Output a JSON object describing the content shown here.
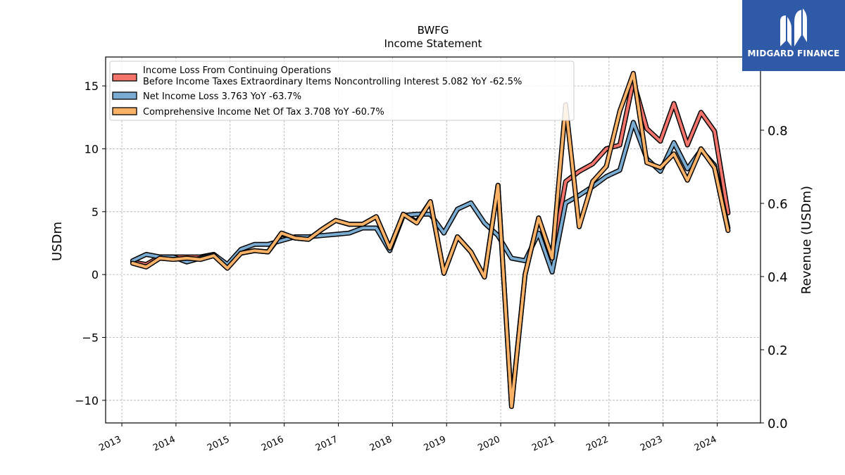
{
  "chart_data": {
    "type": "line",
    "title": "BWFG",
    "subtitle": "Income Statement",
    "ylabel_left": "USDm",
    "ylabel_right": "Revenue (USDm)",
    "ylim_left": [
      -11.8,
      17.3
    ],
    "ylim_right": [
      0.0,
      1.0
    ],
    "yticks_left": [
      -10,
      -5,
      0,
      5,
      10,
      15
    ],
    "ytick_labels_left": [
      "−10",
      "−5",
      "0",
      "5",
      "10",
      "15"
    ],
    "yticks_right": [
      0.0,
      0.2,
      0.4,
      0.6,
      0.8
    ],
    "ytick_labels_right": [
      "0.0",
      "0.2",
      "0.4",
      "0.6",
      "0.8"
    ],
    "xlim": [
      2012.7,
      2024.8
    ],
    "xticks": [
      2013,
      2014,
      2015,
      2016,
      2017,
      2018,
      2019,
      2020,
      2021,
      2022,
      2023,
      2024
    ],
    "xtick_labels": [
      "2013",
      "2014",
      "2015",
      "2016",
      "2017",
      "2018",
      "2019",
      "2020",
      "2021",
      "2022",
      "2023",
      "2024"
    ],
    "grid": true,
    "legend_position": "top-left",
    "x": [
      2013.2,
      2013.45,
      2013.7,
      2013.95,
      2014.2,
      2014.45,
      2014.7,
      2014.95,
      2015.2,
      2015.45,
      2015.7,
      2015.95,
      2016.2,
      2016.45,
      2016.7,
      2016.95,
      2017.2,
      2017.45,
      2017.7,
      2017.95,
      2018.2,
      2018.45,
      2018.7,
      2018.95,
      2019.2,
      2019.45,
      2019.7,
      2019.95,
      2020.2,
      2020.45,
      2020.7,
      2020.95,
      2021.2,
      2021.45,
      2021.7,
      2021.95,
      2022.2,
      2022.45,
      2022.7,
      2022.95,
      2023.2,
      2023.45,
      2023.7,
      2023.95,
      2024.2
    ],
    "series": [
      {
        "name": "Income Loss From Continuing Operations\nBefore Income Taxes Extraordinary Items Noncontrolling Interest  5.082 YoY -62.5%",
        "color": "#f4736b",
        "values": [
          1.0,
          0.8,
          1.4,
          1.4,
          1.4,
          1.4,
          1.6,
          0.6,
          1.7,
          1.9,
          1.8,
          3.2,
          2.9,
          2.8,
          3.6,
          4.3,
          4.0,
          4.0,
          4.6,
          2.1,
          4.8,
          4.2,
          5.8,
          0.1,
          3.0,
          1.8,
          -0.2,
          7.1,
          -10.4,
          0.0,
          4.5,
          1.3,
          7.4,
          8.2,
          8.8,
          10.0,
          10.3,
          15.4,
          11.6,
          10.6,
          13.6,
          10.3,
          12.9,
          11.4,
          4.9
        ]
      },
      {
        "name": "Net Income Loss  3.763 YoY -63.7%",
        "color": "#7aabd0",
        "values": [
          1.1,
          1.6,
          1.4,
          1.4,
          1.0,
          1.3,
          1.6,
          0.8,
          2.0,
          2.4,
          2.4,
          2.7,
          3.0,
          3.0,
          3.1,
          3.2,
          3.3,
          3.7,
          3.7,
          1.9,
          4.7,
          4.8,
          4.8,
          3.3,
          5.2,
          5.7,
          4.1,
          3.1,
          1.3,
          1.1,
          3.3,
          0.2,
          5.7,
          6.3,
          7.0,
          7.8,
          8.3,
          12.1,
          9.2,
          8.2,
          10.5,
          8.4,
          9.9,
          8.7,
          3.7
        ]
      },
      {
        "name": "Comprehensive Income Net Of Tax  3.708 YoY -60.7%",
        "color": "#fbb266",
        "values": [
          0.9,
          0.6,
          1.3,
          1.2,
          1.3,
          1.2,
          1.5,
          0.5,
          1.7,
          1.9,
          1.8,
          3.3,
          2.9,
          2.8,
          3.6,
          4.3,
          4.0,
          4.0,
          4.6,
          2.1,
          4.8,
          4.1,
          5.8,
          0.1,
          3.0,
          1.8,
          -0.2,
          7.1,
          -10.5,
          0.0,
          4.5,
          1.3,
          13.5,
          3.8,
          7.4,
          8.6,
          13.0,
          16.0,
          8.9,
          8.5,
          9.6,
          7.5,
          10.0,
          8.5,
          3.5
        ]
      }
    ]
  },
  "logo": {
    "text": "MIDGARD FINANCE",
    "icon": "midgard-logo-mark",
    "background": "#2f5aa8"
  }
}
